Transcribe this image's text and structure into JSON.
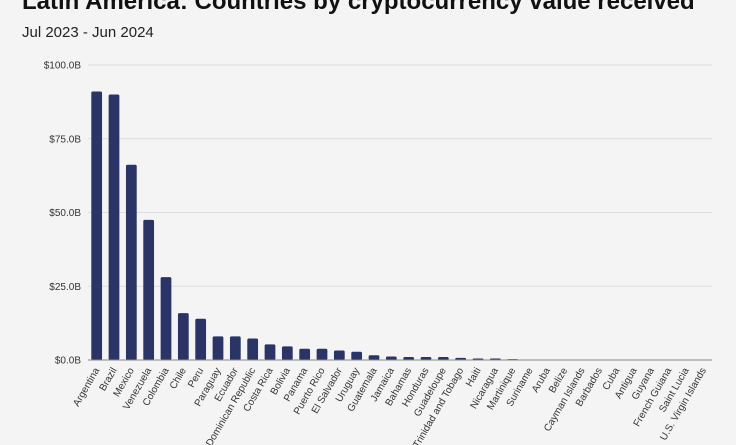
{
  "chart_data": {
    "type": "bar",
    "title": "Latin America: Countries by cryptocurrency value received",
    "subtitle": "Jul 2023 - Jun 2024",
    "xlabel": "",
    "ylabel": "",
    "ylim": [
      0,
      100
    ],
    "yticks": [
      0,
      25,
      50,
      75,
      100
    ],
    "ytick_labels": [
      "$0.0B",
      "$25.0B",
      "$50.0B",
      "$75.0B",
      "$100.0B"
    ],
    "grid": true,
    "bar_color": "#2b3467",
    "categories": [
      "Argentina",
      "Brazil",
      "Mexico",
      "Venezuela",
      "Colombia",
      "Chile",
      "Peru",
      "Paraguay",
      "Ecuador",
      "Dominican Republic",
      "Costa Rica",
      "Bolivia",
      "Panama",
      "Puerto Rico",
      "El Salvador",
      "Uruguay",
      "Guatemala",
      "Jamaica",
      "Bahamas",
      "Honduras",
      "Guadeloupe",
      "Trinidad and Tobago",
      "Haiti",
      "Nicaragua",
      "Martinique",
      "Suriname",
      "Aruba",
      "Belize",
      "Cayman Islands",
      "Barbados",
      "Cuba",
      "Antigua",
      "Guyana",
      "French Guiana",
      "Saint Lucia",
      "U.S. Virgin Islands"
    ],
    "values": [
      91.0,
      90.0,
      66.2,
      47.5,
      28.1,
      15.9,
      14.0,
      8.0,
      8.0,
      7.3,
      5.3,
      4.6,
      3.8,
      3.8,
      3.2,
      2.8,
      1.6,
      1.2,
      1.0,
      1.0,
      1.0,
      0.7,
      0.5,
      0.5,
      0.3,
      0.05,
      0.04,
      0.04,
      0.03,
      0.03,
      0.02,
      0.02,
      0.02,
      0.01,
      0.01,
      0.01
    ]
  }
}
